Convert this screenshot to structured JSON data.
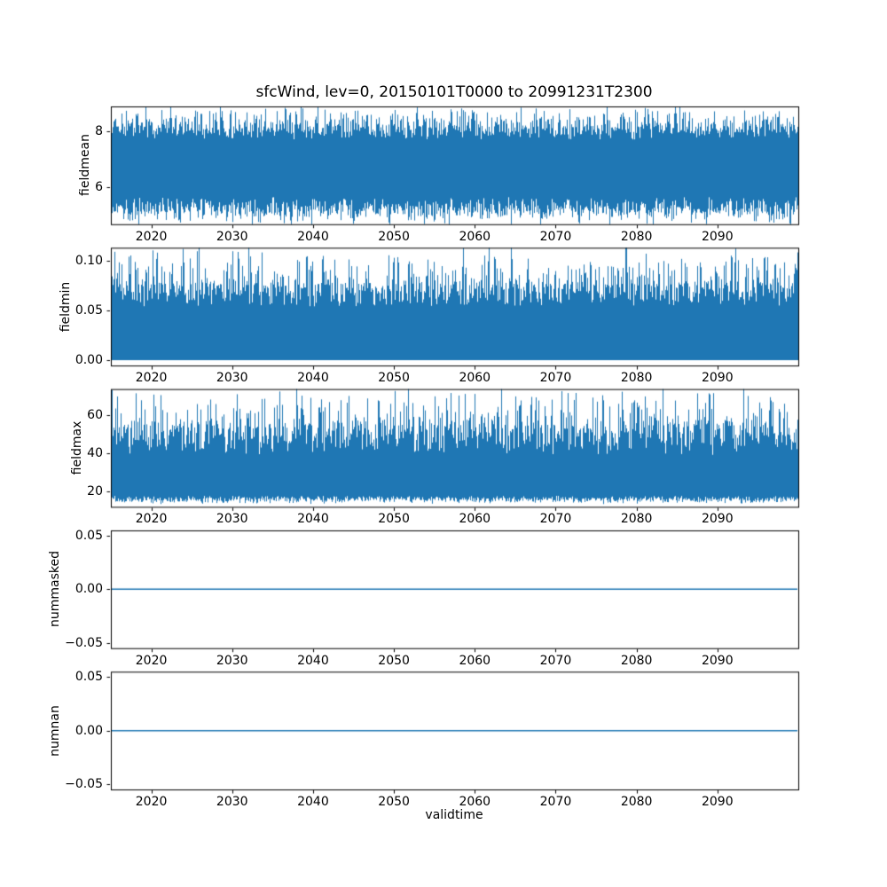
{
  "figure": {
    "title": "sfcWind, lev=0, 20150101T0000 to 20991231T2300",
    "xlabel": "validtime",
    "background": "#ffffff",
    "line_color": "#1f77b4",
    "text_color": "#000000"
  },
  "chart_data": [
    {
      "type": "line",
      "name": "fieldmean",
      "ylabel": "fieldmean",
      "summary": "Dense noisy time series oscillating between about 4.9 and 8.8, centered near 6.6, 2015-2100",
      "xlim": [
        2015,
        2100
      ],
      "x_tick_values": [
        2020,
        2030,
        2040,
        2050,
        2060,
        2070,
        2080,
        2090
      ],
      "x_tick_labels": [
        "2020",
        "2030",
        "2040",
        "2050",
        "2060",
        "2070",
        "2080",
        "2090"
      ],
      "ylim": [
        4.67,
        8.9
      ],
      "y_tick_values": [
        6,
        8
      ],
      "y_tick_labels": [
        "6",
        "8"
      ],
      "series": {
        "kind": "noisy_band",
        "core": [
          5.35,
          7.95
        ],
        "extremes": [
          4.85,
          8.72
        ],
        "jitter_hi": 0.25,
        "jitter_lo": 0.3,
        "spike_power": 2
      }
    },
    {
      "type": "line",
      "name": "fieldmin",
      "ylabel": "fieldmin",
      "summary": "Dense noisy series from 0.00 up to about 0.07 typical, with spikes reaching about 0.105, 2015-2100",
      "xlim": [
        2015,
        2100
      ],
      "x_tick_values": [
        2020,
        2030,
        2040,
        2050,
        2060,
        2070,
        2080,
        2090
      ],
      "x_tick_labels": [
        "2020",
        "2030",
        "2040",
        "2050",
        "2060",
        "2070",
        "2080",
        "2090"
      ],
      "ylim": [
        -0.0054,
        0.1134
      ],
      "y_tick_values": [
        0,
        0.05,
        0.1
      ],
      "y_tick_labels": [
        "0.00",
        "0.05",
        "0.10"
      ],
      "series": {
        "kind": "noisy_band",
        "core": [
          0.0,
          0.066
        ],
        "extremes": [
          0.0,
          0.108
        ],
        "jitter_hi": 0.012,
        "jitter_lo": 0,
        "spike_power": 3
      }
    },
    {
      "type": "line",
      "name": "fieldmax",
      "ylabel": "fieldmax",
      "summary": "Dense noisy series with lower band near 15-20 and spikes ranging up to about 70, 2015-2100",
      "xlim": [
        2015,
        2100
      ],
      "x_tick_values": [
        2020,
        2030,
        2040,
        2050,
        2060,
        2070,
        2080,
        2090
      ],
      "x_tick_labels": [
        "2020",
        "2030",
        "2040",
        "2050",
        "2060",
        "2070",
        "2080",
        "2090"
      ],
      "ylim": [
        11.7,
        73.8
      ],
      "y_tick_values": [
        20,
        40,
        60
      ],
      "y_tick_labels": [
        "20",
        "40",
        "60"
      ],
      "series": {
        "kind": "noisy_band",
        "core": [
          16,
          47
        ],
        "extremes": [
          14.5,
          71
        ],
        "jitter_hi": 8,
        "jitter_lo": 1.5,
        "spike_power": 2.5
      }
    },
    {
      "type": "line",
      "name": "nummasked",
      "ylabel": "nummasked",
      "summary": "Constant flat line at 0.00 across the full time range",
      "xlim": [
        2015,
        2100
      ],
      "x_tick_values": [
        2020,
        2030,
        2040,
        2050,
        2060,
        2070,
        2080,
        2090
      ],
      "x_tick_labels": [
        "2020",
        "2030",
        "2040",
        "2050",
        "2060",
        "2070",
        "2080",
        "2090"
      ],
      "ylim": [
        -0.055,
        0.055
      ],
      "y_tick_values": [
        -0.05,
        0,
        0.05
      ],
      "y_tick_labels": [
        "−0.05",
        "0.00",
        "0.05"
      ],
      "series": {
        "kind": "constant",
        "value": 0
      }
    },
    {
      "type": "line",
      "name": "numnan",
      "ylabel": "numnan",
      "summary": "Constant flat line at 0.00 across the full time range",
      "xlim": [
        2015,
        2100
      ],
      "x_tick_values": [
        2020,
        2030,
        2040,
        2050,
        2060,
        2070,
        2080,
        2090
      ],
      "x_tick_labels": [
        "2020",
        "2030",
        "2040",
        "2050",
        "2060",
        "2070",
        "2080",
        "2090"
      ],
      "ylim": [
        -0.055,
        0.055
      ],
      "y_tick_values": [
        -0.05,
        0,
        0.05
      ],
      "y_tick_labels": [
        "−0.05",
        "0.00",
        "0.05"
      ],
      "series": {
        "kind": "constant",
        "value": 0
      }
    }
  ]
}
